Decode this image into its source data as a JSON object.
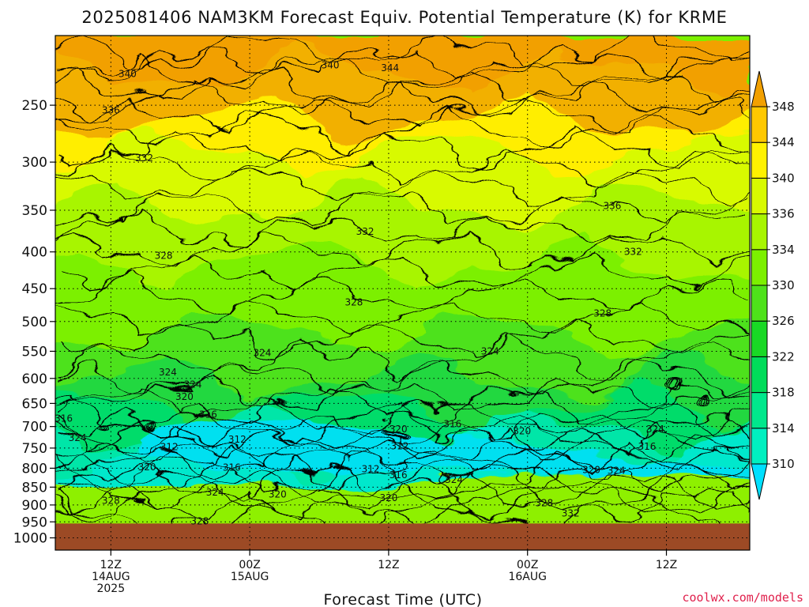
{
  "chart_data": {
    "type": "heatmap",
    "title": "2025081406 NAM3KM Forecast Equiv. Potential Temperature (K) for KRME",
    "xlabel": "Forecast Time (UTC)",
    "ylabel": "",
    "pressure_levels": [
      250,
      300,
      350,
      400,
      450,
      500,
      550,
      600,
      650,
      700,
      750,
      800,
      850,
      900,
      950,
      1000
    ],
    "y_log_scale": true,
    "y_inverted": true,
    "ylim": [
      200,
      1040
    ],
    "xlim_hours": [
      -4,
      46
    ],
    "x_ticks": [
      {
        "hour": 0,
        "lines": [
          "12Z",
          "14AUG",
          "2025"
        ]
      },
      {
        "hour": 10,
        "lines": [
          "00Z",
          "15AUG"
        ]
      },
      {
        "hour": 20,
        "lines": [
          "12Z"
        ]
      },
      {
        "hour": 30,
        "lines": [
          "00Z",
          "16AUG"
        ]
      },
      {
        "hour": 40,
        "lines": [
          "12Z"
        ]
      }
    ],
    "grid": true,
    "surface_pressure": 955,
    "colorbar": {
      "levels": [
        310,
        314,
        318,
        322,
        326,
        330,
        334,
        336,
        340,
        344,
        348
      ],
      "colors": [
        "#00e0ff",
        "#00f0c0",
        "#00e88c",
        "#00dc5a",
        "#19d825",
        "#4ee21a",
        "#7cf000",
        "#a8f500",
        "#d8fa00",
        "#fff200",
        "#ffc800",
        "#f2a000"
      ]
    },
    "contour_labels": [
      {
        "value": "340",
        "hour": 1.2,
        "p": 226
      },
      {
        "value": "340",
        "hour": 15.8,
        "p": 220
      },
      {
        "value": "344",
        "hour": 20.1,
        "p": 222
      },
      {
        "value": "336",
        "hour": 0.0,
        "p": 254
      },
      {
        "value": "332",
        "hour": 2.4,
        "p": 296
      },
      {
        "value": "332",
        "hour": 18.3,
        "p": 375
      },
      {
        "value": "336",
        "hour": 36.1,
        "p": 345
      },
      {
        "value": "332",
        "hour": 37.6,
        "p": 400
      },
      {
        "value": "328",
        "hour": 3.8,
        "p": 405
      },
      {
        "value": "328",
        "hour": 17.5,
        "p": 470
      },
      {
        "value": "328",
        "hour": 35.4,
        "p": 487
      },
      {
        "value": "324",
        "hour": 10.9,
        "p": 553
      },
      {
        "value": "324",
        "hour": 27.3,
        "p": 550
      },
      {
        "value": "324",
        "hour": 4.1,
        "p": 588
      },
      {
        "value": "324",
        "hour": 5.9,
        "p": 612
      },
      {
        "value": "320",
        "hour": 5.3,
        "p": 636
      },
      {
        "value": "316",
        "hour": -3.4,
        "p": 682
      },
      {
        "value": "316",
        "hour": 7.0,
        "p": 674
      },
      {
        "value": "320",
        "hour": 20.7,
        "p": 706
      },
      {
        "value": "316",
        "hour": 24.6,
        "p": 694
      },
      {
        "value": "320",
        "hour": 29.6,
        "p": 710
      },
      {
        "value": "324",
        "hour": -2.4,
        "p": 726
      },
      {
        "value": "312",
        "hour": 4.2,
        "p": 747
      },
      {
        "value": "312",
        "hour": 9.1,
        "p": 730
      },
      {
        "value": "312",
        "hour": 20.8,
        "p": 745
      },
      {
        "value": "324",
        "hour": 39.2,
        "p": 706
      },
      {
        "value": "316",
        "hour": 38.6,
        "p": 746
      },
      {
        "value": "320",
        "hour": 2.6,
        "p": 797
      },
      {
        "value": "316",
        "hour": 8.7,
        "p": 798
      },
      {
        "value": "312",
        "hour": 18.7,
        "p": 802
      },
      {
        "value": "316",
        "hour": 20.7,
        "p": 818
      },
      {
        "value": "324",
        "hour": 24.7,
        "p": 830
      },
      {
        "value": "320",
        "hour": 34.6,
        "p": 804
      },
      {
        "value": "324",
        "hour": 36.4,
        "p": 806
      },
      {
        "value": "324",
        "hour": 7.5,
        "p": 864
      },
      {
        "value": "320",
        "hour": 12.0,
        "p": 870
      },
      {
        "value": "320",
        "hour": 20.0,
        "p": 880
      },
      {
        "value": "328",
        "hour": 0.0,
        "p": 888
      },
      {
        "value": "328",
        "hour": 31.2,
        "p": 894
      },
      {
        "value": "332",
        "hour": 33.1,
        "p": 925
      },
      {
        "value": "328",
        "hour": 6.4,
        "p": 948
      }
    ]
  },
  "credit": "coolwx.com/models"
}
